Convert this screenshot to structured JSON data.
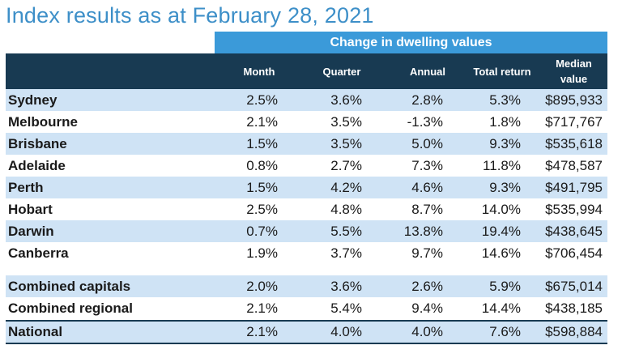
{
  "title": "Index results as at February 28, 2021",
  "group_header": "Change in dwelling values",
  "columns": {
    "month": "Month",
    "quarter": "Quarter",
    "annual": "Annual",
    "total_return": "Total return",
    "median_line1": "Median",
    "median_line2": "value"
  },
  "rows": [
    {
      "name": "Sydney",
      "month": "2.5%",
      "quarter": "3.6%",
      "annual": "2.8%",
      "total_return": "5.3%",
      "median": "$895,933"
    },
    {
      "name": "Melbourne",
      "month": "2.1%",
      "quarter": "3.5%",
      "annual": "-1.3%",
      "total_return": "1.8%",
      "median": "$717,767"
    },
    {
      "name": "Brisbane",
      "month": "1.5%",
      "quarter": "3.5%",
      "annual": "5.0%",
      "total_return": "9.3%",
      "median": "$535,618"
    },
    {
      "name": "Adelaide",
      "month": "0.8%",
      "quarter": "2.7%",
      "annual": "7.3%",
      "total_return": "11.8%",
      "median": "$478,587"
    },
    {
      "name": "Perth",
      "month": "1.5%",
      "quarter": "4.2%",
      "annual": "4.6%",
      "total_return": "9.3%",
      "median": "$491,795"
    },
    {
      "name": "Hobart",
      "month": "2.5%",
      "quarter": "4.8%",
      "annual": "8.7%",
      "total_return": "14.0%",
      "median": "$535,994"
    },
    {
      "name": "Darwin",
      "month": "0.7%",
      "quarter": "5.5%",
      "annual": "13.8%",
      "total_return": "19.4%",
      "median": "$438,645"
    },
    {
      "name": "Canberra",
      "month": "1.9%",
      "quarter": "3.7%",
      "annual": "9.7%",
      "total_return": "14.6%",
      "median": "$706,454"
    },
    {
      "name": "Combined capitals",
      "month": "2.0%",
      "quarter": "3.6%",
      "annual": "2.6%",
      "total_return": "5.9%",
      "median": "$675,014"
    },
    {
      "name": "Combined regional",
      "month": "2.1%",
      "quarter": "5.4%",
      "annual": "9.4%",
      "total_return": "14.4%",
      "median": "$438,185"
    },
    {
      "name": "National",
      "month": "2.1%",
      "quarter": "4.0%",
      "annual": "4.0%",
      "total_return": "7.6%",
      "median": "$598,884"
    }
  ],
  "colors": {
    "title": "#3d8fc8",
    "group_header_bg": "#3b9ad9",
    "column_header_bg": "#183a52",
    "row_shade": "#cfe3f5"
  }
}
